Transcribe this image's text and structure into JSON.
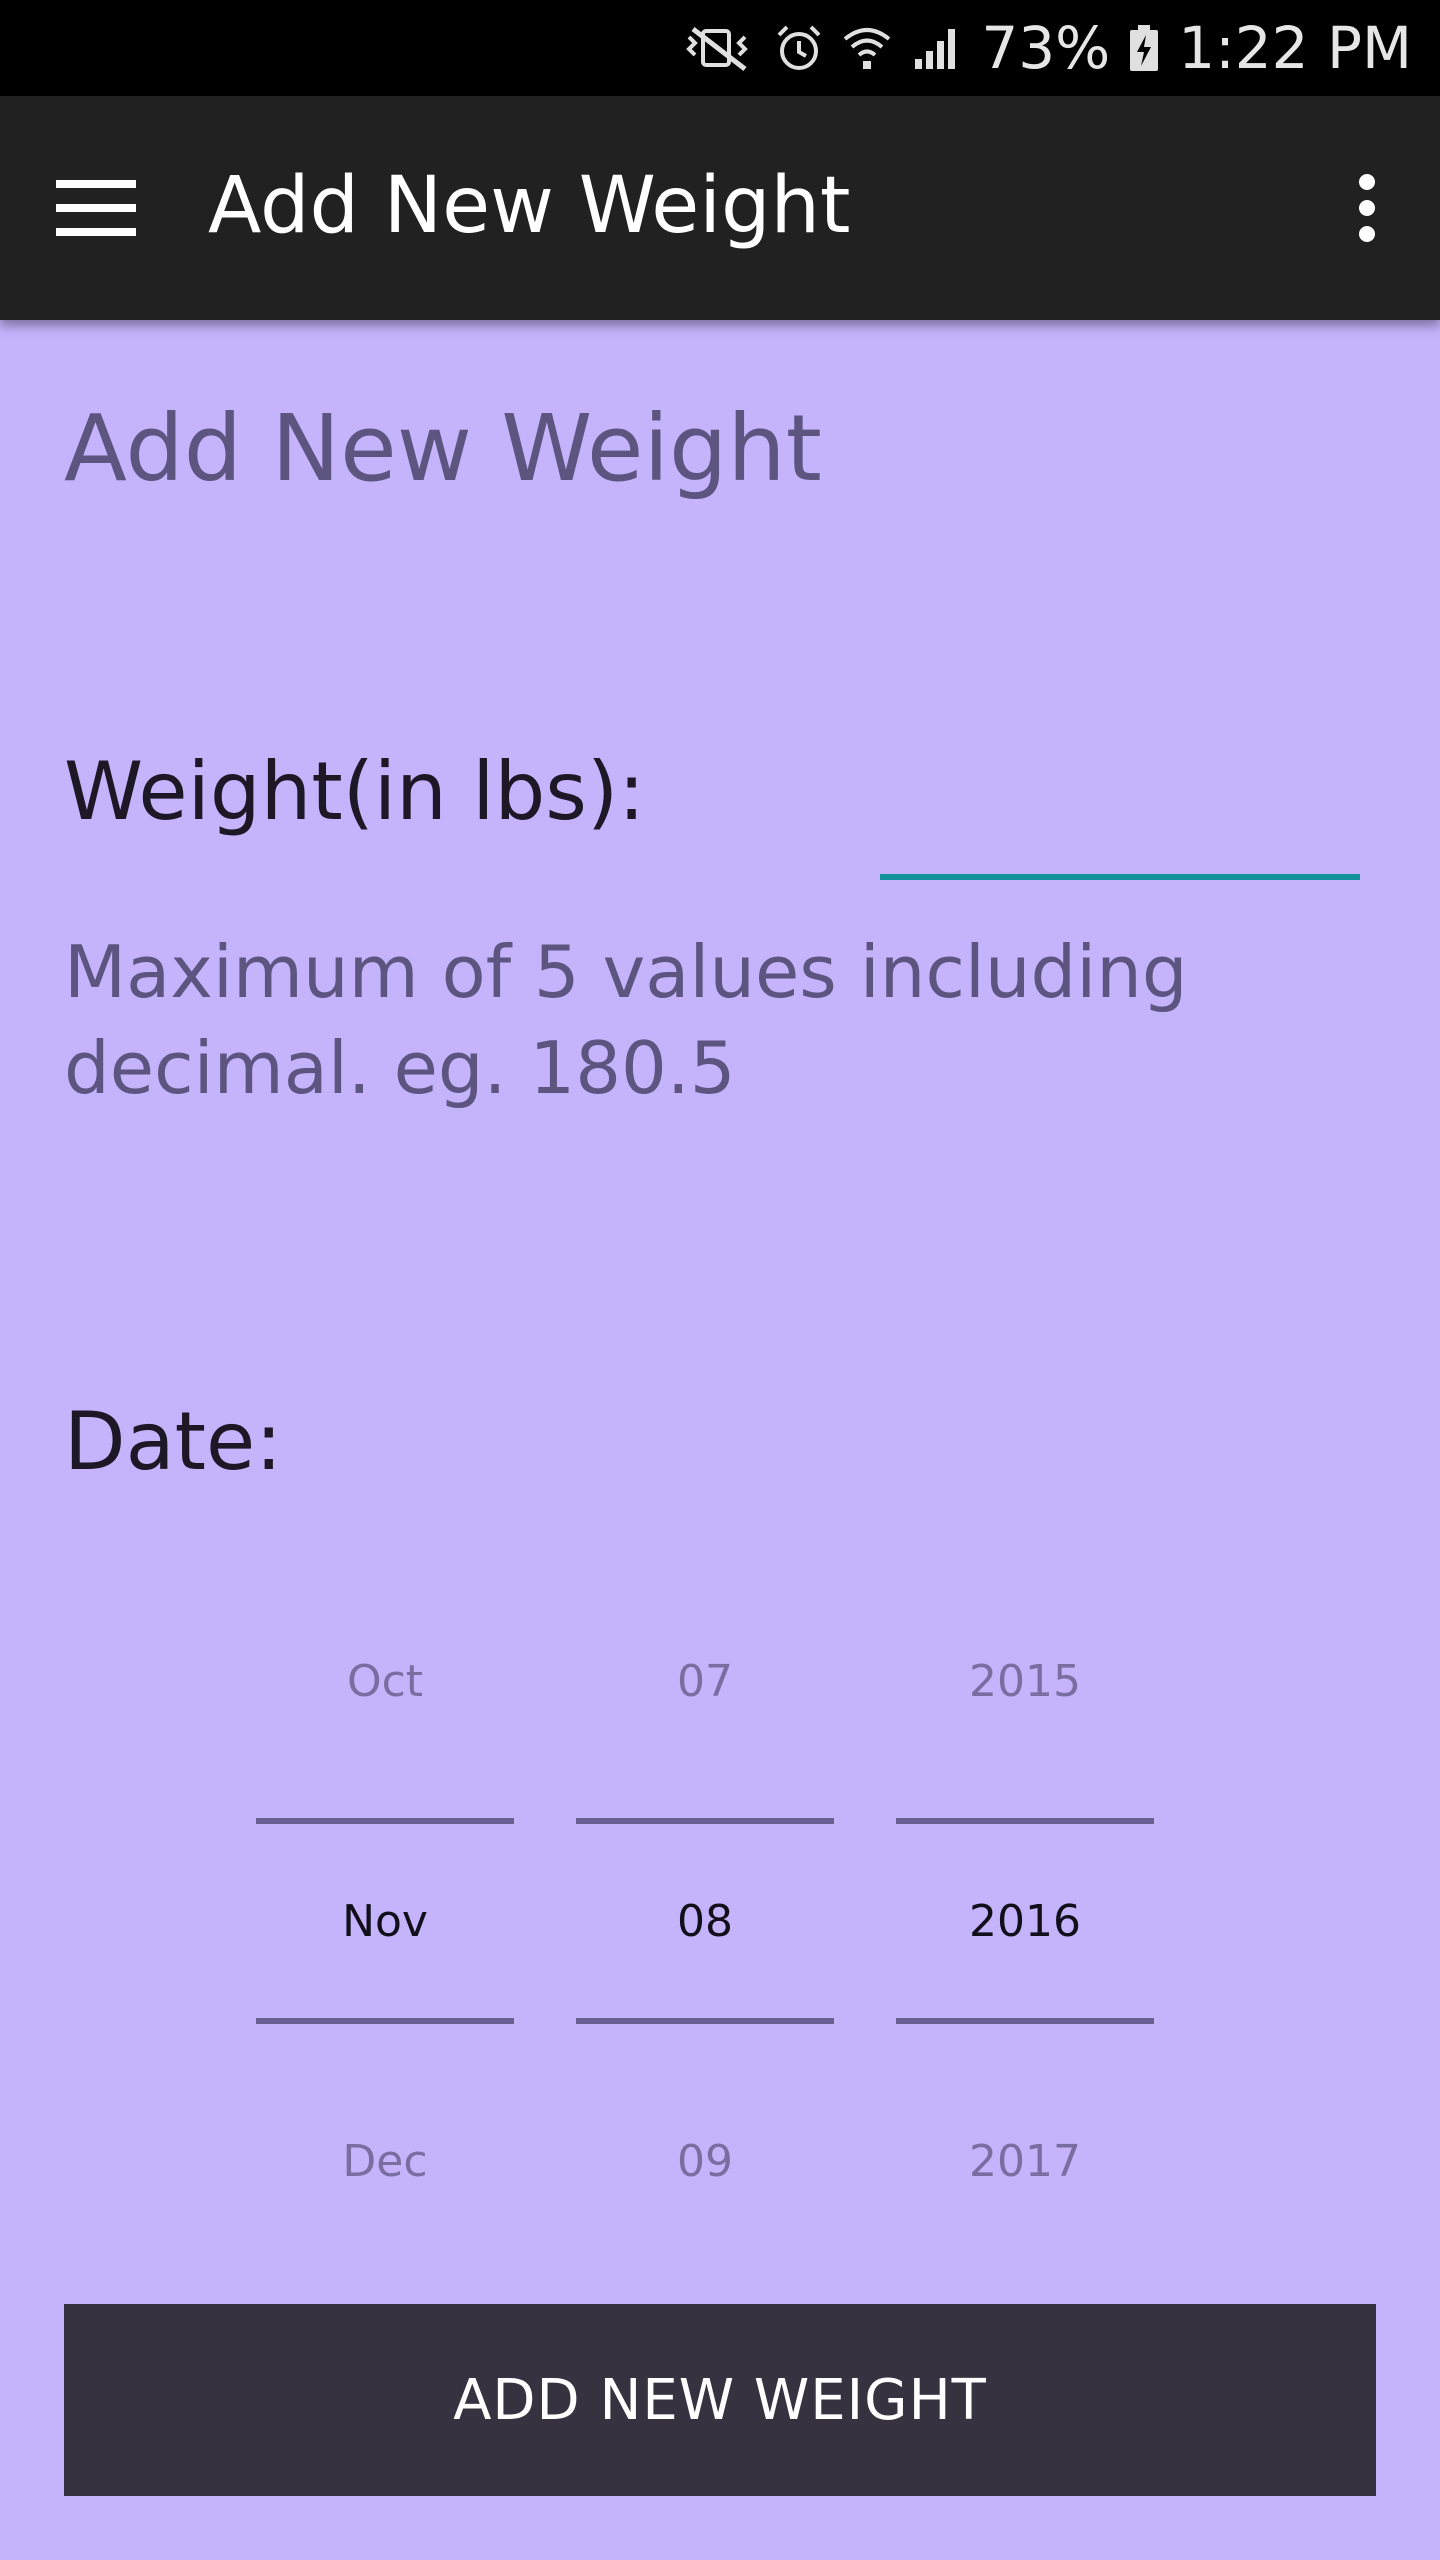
{
  "status_bar": {
    "battery": "73%",
    "time": "1:22 PM",
    "icons": [
      "vibrate-mute-icon",
      "alarm-icon",
      "wifi-icon",
      "cell-signal-icon",
      "battery-charging-icon"
    ]
  },
  "app_bar": {
    "title": "Add New Weight",
    "menu_icon": "hamburger-menu-icon",
    "overflow_icon": "more-vert-icon"
  },
  "form": {
    "heading": "Add New Weight",
    "weight_label": "Weight(in lbs):",
    "weight_value": "",
    "weight_hint": "Maximum of 5 values including decimal. eg. 180.5",
    "date_label": "Date:"
  },
  "date_picker": {
    "month": {
      "prev": "Oct",
      "current": "Nov",
      "next": "Dec"
    },
    "day": {
      "prev": "07",
      "current": "08",
      "next": "09"
    },
    "year": {
      "prev": "2015",
      "current": "2016",
      "next": "2017"
    }
  },
  "submit_button_label": "ADD NEW WEIGHT",
  "colors": {
    "background": "#c5b3fc",
    "app_bar": "#212121",
    "input_underline": "#12929a",
    "button": "#37323f"
  }
}
